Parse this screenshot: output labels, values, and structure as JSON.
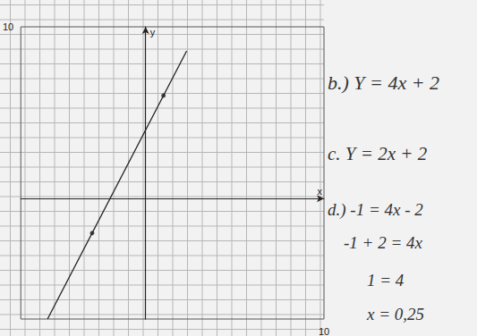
{
  "chart_data": {
    "type": "line",
    "x_label": "x",
    "y_label": "y",
    "xlim": [
      -7,
      10
    ],
    "ylim": [
      -7,
      10
    ],
    "xticks": [
      10
    ],
    "yticks": [
      10
    ],
    "grid": true,
    "series": [
      {
        "type": "line",
        "color": "#222222",
        "marker": "none",
        "line_style": "solid",
        "x": [
          -5.5,
          2.3
        ],
        "values": [
          -7,
          8.6
        ]
      },
      {
        "type": "scatter",
        "color": "#222222",
        "marker": "circle",
        "x": [
          -3,
          1
        ],
        "values": [
          -2,
          6
        ]
      }
    ],
    "annotations": [
      "b.) Y = 4x + 2",
      "c. Y = 2x + 2",
      "d.) -1 = 4x - 2",
      "-1 + 2 = 4x",
      "1 = 4",
      "x = 0,25"
    ]
  }
}
